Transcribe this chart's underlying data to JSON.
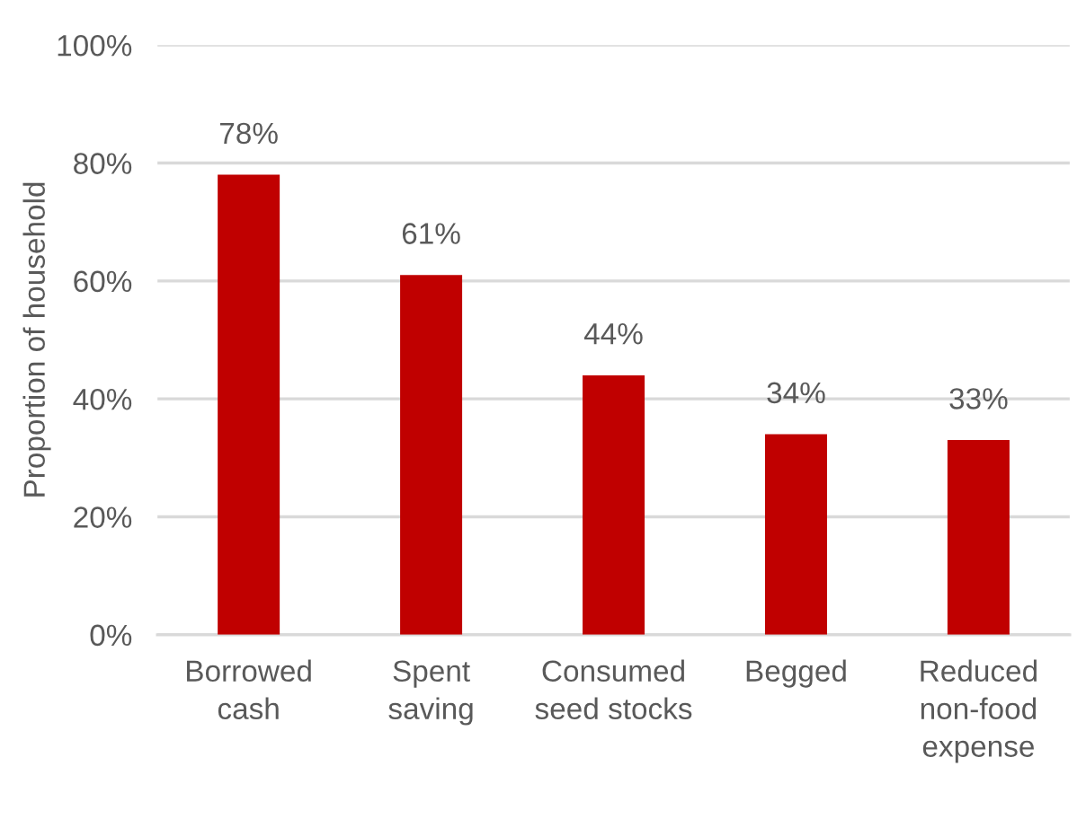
{
  "chart_data": {
    "type": "bar",
    "ylabel": "Proportion of household",
    "categories": [
      "Borrowed\ncash",
      "Spent\nsaving",
      "Consumed\nseed stocks",
      "Begged",
      "Reduced\nnon-food\nexpense"
    ],
    "values": [
      78,
      61,
      44,
      34,
      33
    ],
    "value_labels": [
      "78%",
      "61%",
      "44%",
      "34%",
      "33%"
    ],
    "color": "#c00000",
    "ylim": [
      0,
      100
    ],
    "yticks": [
      {
        "value": 0,
        "label": "0%"
      },
      {
        "value": 20,
        "label": "20%"
      },
      {
        "value": 40,
        "label": "40%"
      },
      {
        "value": 60,
        "label": "60%"
      },
      {
        "value": 80,
        "label": "80%"
      },
      {
        "value": 100,
        "label": "100%"
      }
    ],
    "grid": "y"
  }
}
